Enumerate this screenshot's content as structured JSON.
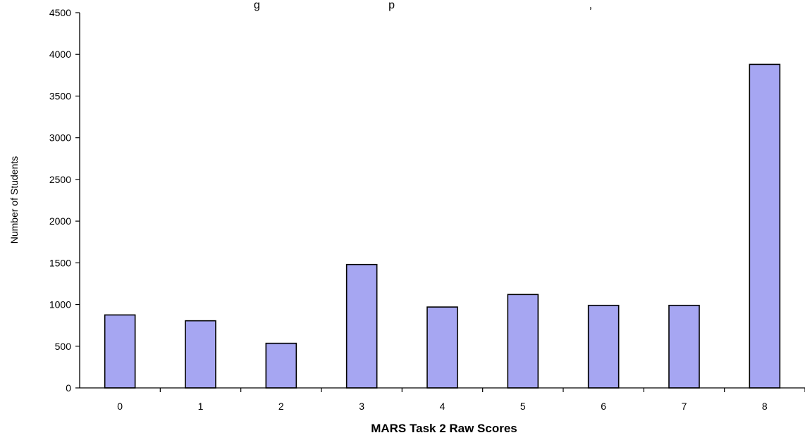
{
  "chart_data": {
    "type": "bar",
    "title": "g                                         p                                                              ,",
    "xlabel": "MARS Task 2 Raw Scores",
    "ylabel": "Number of Students",
    "categories": [
      "0",
      "1",
      "2",
      "3",
      "4",
      "5",
      "6",
      "7",
      "8"
    ],
    "values": [
      875,
      805,
      535,
      1480,
      970,
      1120,
      990,
      990,
      3880
    ],
    "ylim": [
      0,
      4500
    ],
    "yticks": [
      0,
      500,
      1000,
      1500,
      2000,
      2500,
      3000,
      3500,
      4000,
      4500
    ],
    "grid": false,
    "legend": "none",
    "bar_color": "#a6a6f2",
    "bar_edge_color": "#000000"
  }
}
